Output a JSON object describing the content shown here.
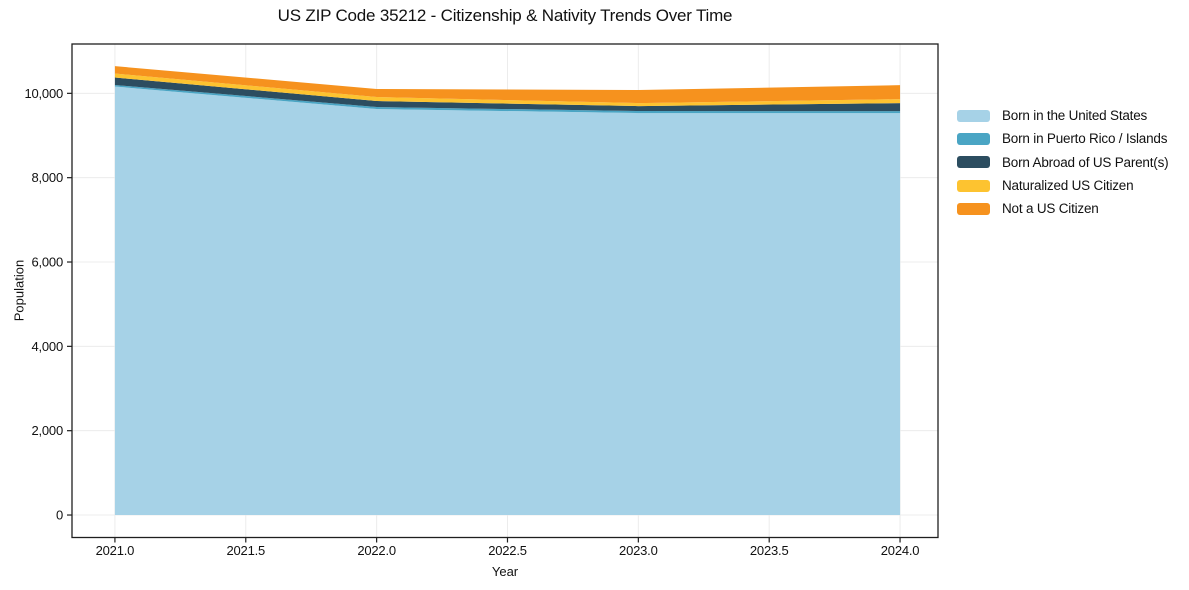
{
  "chart_data": {
    "type": "area",
    "stacked": true,
    "title": "US ZIP Code 35212 - Citizenship & Nativity Trends Over Time",
    "xlabel": "Year",
    "ylabel": "Population",
    "x": [
      2021,
      2022,
      2023,
      2024
    ],
    "series": [
      {
        "name": "Born in the United States",
        "color": "#a6d2e7",
        "values": [
          10161,
          9628,
          9532,
          9532
        ]
      },
      {
        "name": "Born in Puerto Rico / Islands",
        "color": "#4aa5c4",
        "values": [
          36,
          47,
          48,
          46
        ]
      },
      {
        "name": "Born Abroad of US Parent(s)",
        "color": "#2c4d60",
        "values": [
          178,
          142,
          118,
          190
        ]
      },
      {
        "name": "Naturalized US Citizen",
        "color": "#fdc330",
        "values": [
          95,
          95,
          71,
          94
        ]
      },
      {
        "name": "Not a US Citizen",
        "color": "#f6921e",
        "values": [
          175,
          190,
          309,
          332
        ]
      }
    ],
    "totals": [
      10645,
      10102,
      10078,
      10194
    ],
    "xlim": [
      2020.836,
      2024.145
    ],
    "ylim": [
      -533,
      11170
    ],
    "x_tickvals": [
      2021.0,
      2021.5,
      2022.0,
      2022.5,
      2023.0,
      2023.5,
      2024.0
    ],
    "x_ticklabels": [
      "2021.0",
      "2021.5",
      "2022.0",
      "2022.5",
      "2023.0",
      "2023.5",
      "2024.0"
    ],
    "y_tickvals": [
      0,
      2000,
      4000,
      6000,
      8000,
      10000
    ],
    "y_ticklabels": [
      "0",
      "2,000",
      "4,000",
      "6,000",
      "8,000",
      "10,000"
    ],
    "grid": true,
    "legend_position": "right",
    "colors": {
      "text": "#111111",
      "spine": "#1f1f1f",
      "gridline": "#ececec",
      "background": "#ffffff"
    }
  }
}
